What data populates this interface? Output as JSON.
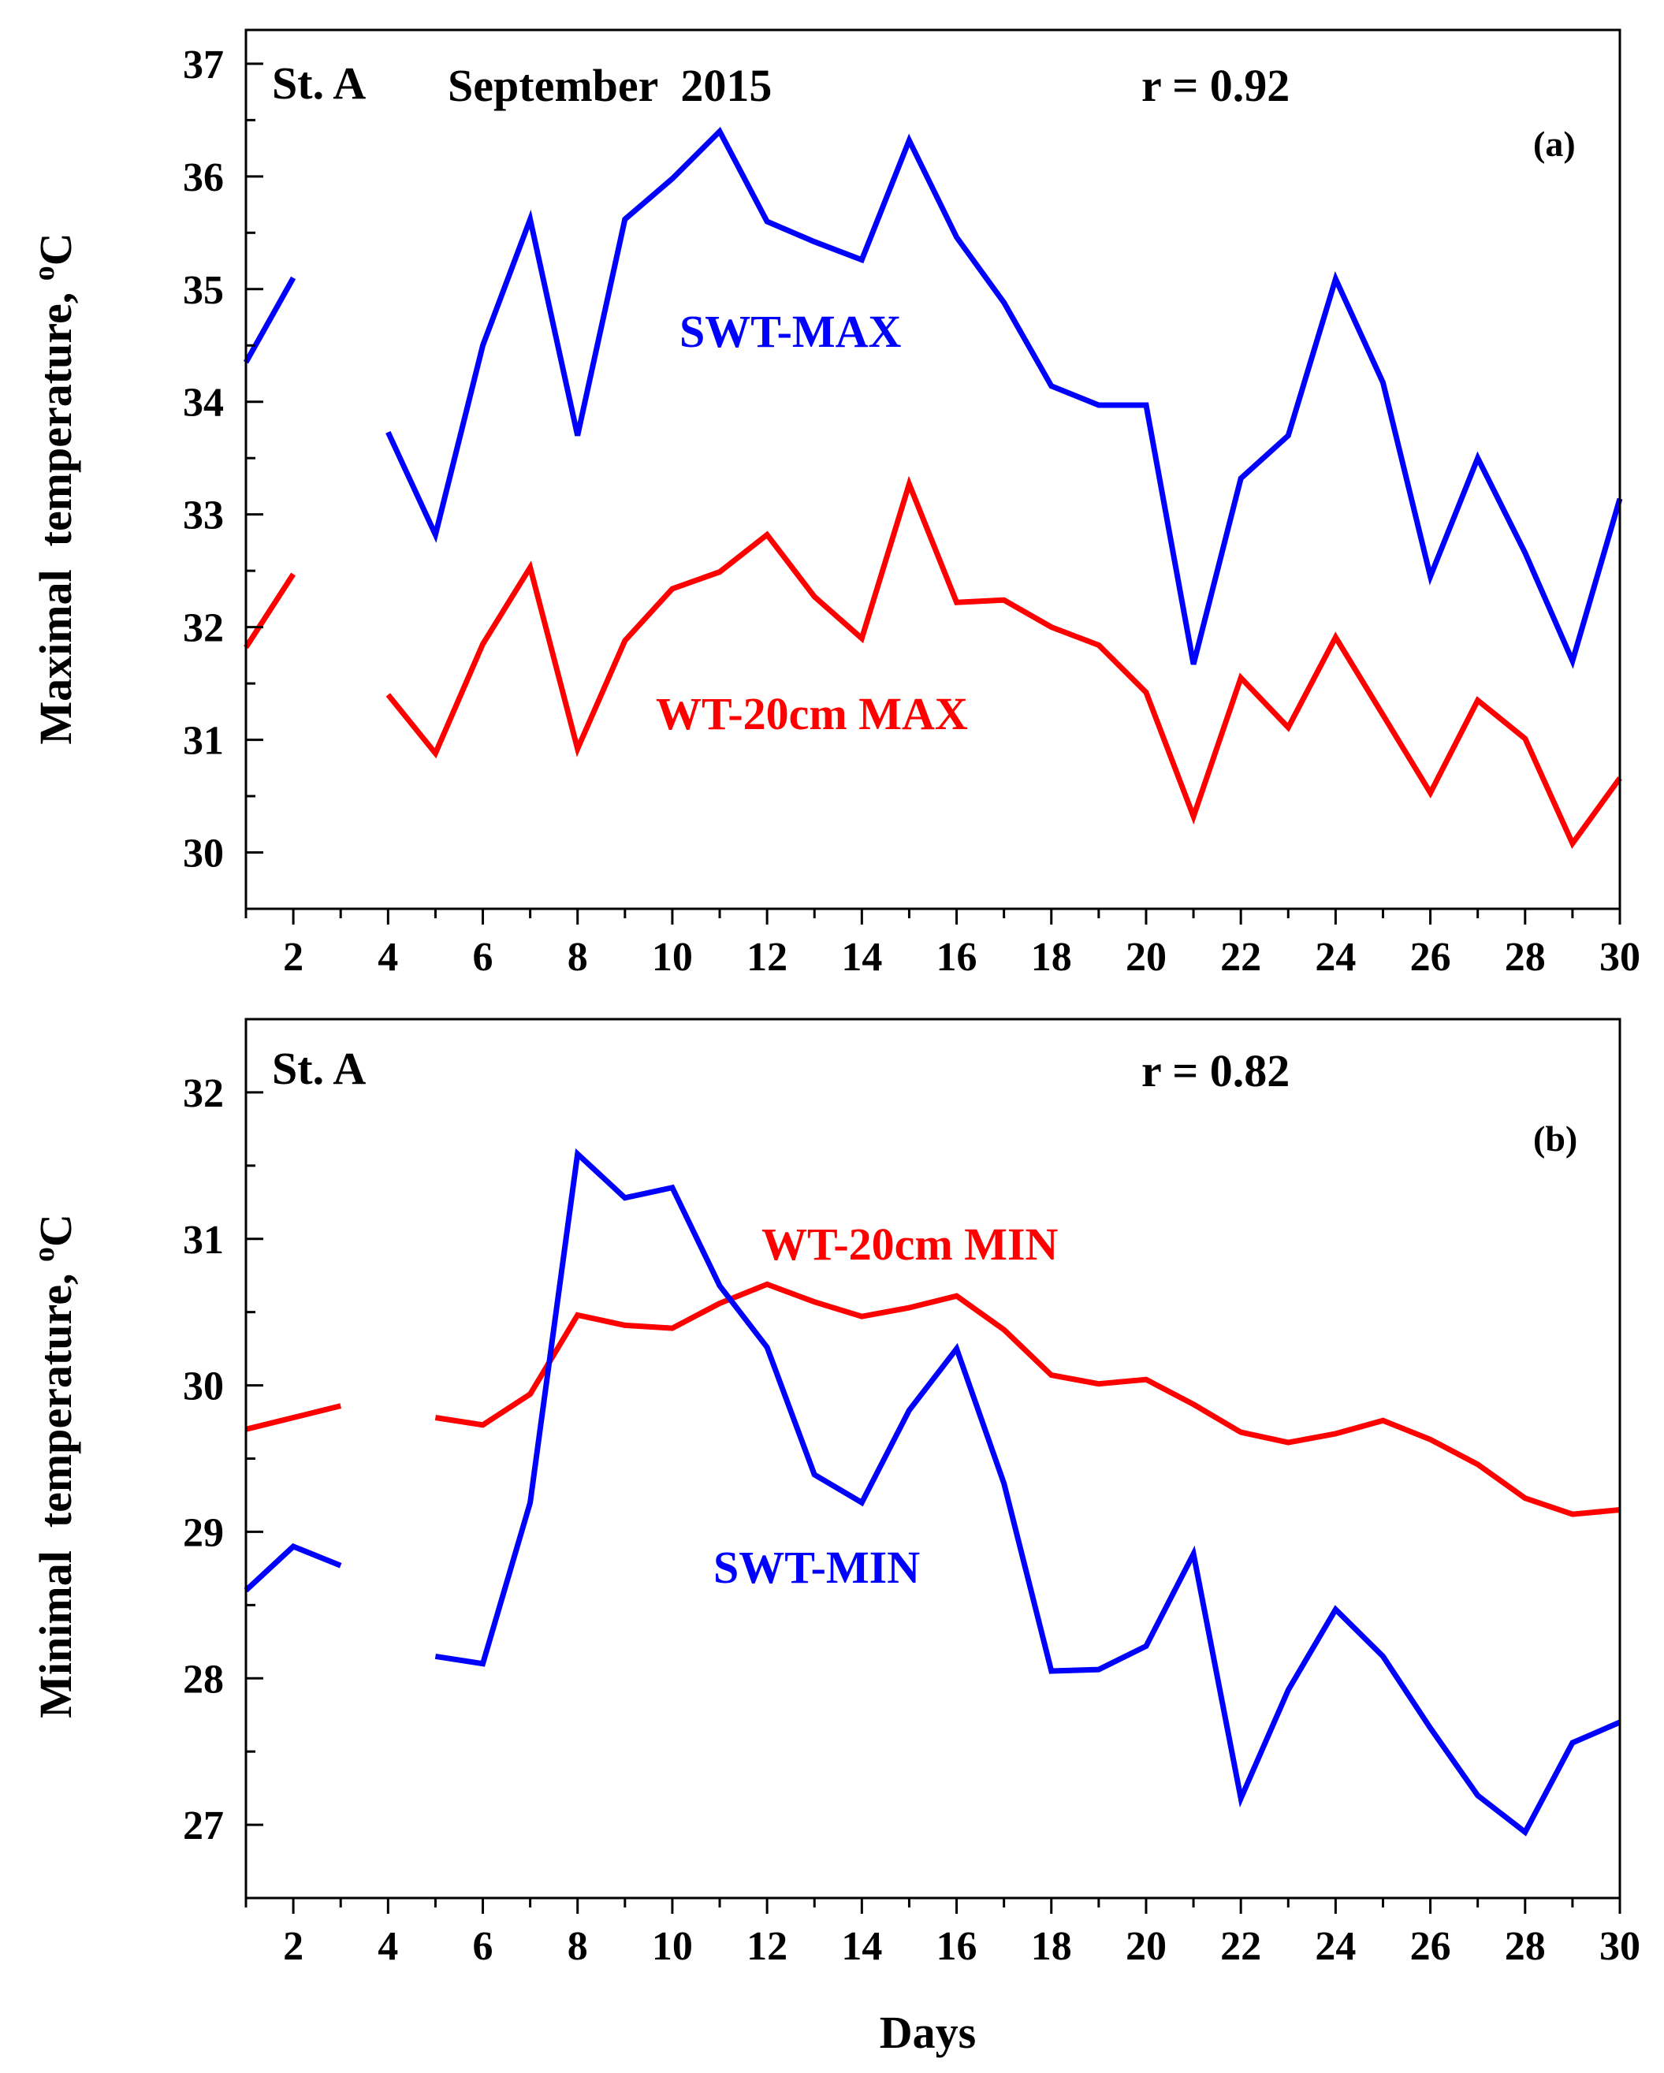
{
  "chart_data": [
    {
      "panel": "(a)",
      "type": "line",
      "station": "St. A",
      "title": "September  2015",
      "correlation": "r = 0.92",
      "ylabel": "Maximal  temperature,",
      "ylabel_unit_sup": "o",
      "ylabel_unit": "C",
      "xlim": [
        1,
        30
      ],
      "ylim": [
        29.5,
        37.3
      ],
      "y_ticks": [
        30,
        31,
        32,
        33,
        34,
        35,
        36,
        37
      ],
      "x_ticks": [
        2,
        4,
        6,
        8,
        10,
        12,
        14,
        16,
        18,
        20,
        22,
        24,
        26,
        28,
        30
      ],
      "x": [
        1,
        2,
        3,
        4,
        5,
        6,
        7,
        8,
        9,
        10,
        11,
        12,
        13,
        14,
        15,
        16,
        17,
        18,
        19,
        20,
        21,
        22,
        23,
        24,
        25,
        26,
        27,
        28,
        29,
        30
      ],
      "series": [
        {
          "name": "SWT-MAX",
          "color": "#0000ff",
          "values": [
            34.35,
            35.1,
            null,
            33.73,
            32.82,
            34.5,
            35.62,
            33.7,
            35.62,
            35.98,
            36.4,
            35.6,
            35.42,
            35.26,
            36.32,
            35.46,
            34.88,
            34.14,
            33.97,
            33.97,
            31.67,
            33.32,
            33.7,
            35.09,
            34.17,
            32.45,
            33.5,
            32.66,
            31.7,
            33.14
          ]
        },
        {
          "name": "WT-20cm MAX",
          "color": "#ff0000",
          "values": [
            31.82,
            32.47,
            null,
            31.4,
            30.88,
            31.85,
            32.53,
            30.92,
            31.88,
            32.34,
            32.49,
            32.82,
            32.27,
            31.9,
            33.27,
            32.22,
            32.24,
            32.0,
            31.84,
            31.42,
            30.32,
            31.55,
            31.11,
            31.91,
            31.22,
            30.53,
            31.35,
            31.01,
            30.08,
            30.66
          ]
        }
      ],
      "label_positions": [
        "upper-middle",
        "lower-middle"
      ]
    },
    {
      "panel": "(b)",
      "type": "line",
      "station": "St. A",
      "correlation": "r = 0.82",
      "xlabel": "Days",
      "ylabel": "Minimal  temperature,",
      "ylabel_unit_sup": "o",
      "ylabel_unit": "C",
      "xlim": [
        1,
        30
      ],
      "ylim": [
        26.5,
        32.5
      ],
      "y_ticks": [
        27,
        28,
        29,
        30,
        31,
        32
      ],
      "x_ticks": [
        2,
        4,
        6,
        8,
        10,
        12,
        14,
        16,
        18,
        20,
        22,
        24,
        26,
        28,
        30
      ],
      "x": [
        1,
        2,
        3,
        4,
        5,
        6,
        7,
        8,
        9,
        10,
        11,
        12,
        13,
        14,
        15,
        16,
        17,
        18,
        19,
        20,
        21,
        22,
        23,
        24,
        25,
        26,
        27,
        28,
        29,
        30
      ],
      "series": [
        {
          "name": "WT-20cm MIN",
          "color": "#ff0000",
          "values": [
            29.7,
            29.78,
            29.86,
            null,
            29.78,
            29.73,
            29.94,
            30.48,
            30.41,
            30.39,
            30.56,
            30.69,
            30.57,
            30.47,
            30.53,
            30.61,
            30.38,
            30.07,
            30.01,
            30.04,
            29.87,
            29.68,
            29.61,
            29.67,
            29.76,
            29.63,
            29.46,
            29.23,
            29.12,
            29.15
          ]
        },
        {
          "name": "SWT-MIN",
          "color": "#0000ff",
          "values": [
            28.6,
            28.9,
            28.77,
            null,
            28.15,
            28.1,
            29.2,
            31.58,
            31.28,
            31.35,
            30.68,
            30.26,
            29.39,
            29.2,
            29.83,
            30.25,
            29.33,
            28.05,
            28.06,
            28.22,
            28.85,
            27.18,
            27.92,
            28.47,
            28.15,
            27.66,
            27.2,
            26.95,
            27.56,
            27.7
          ]
        }
      ]
    }
  ]
}
